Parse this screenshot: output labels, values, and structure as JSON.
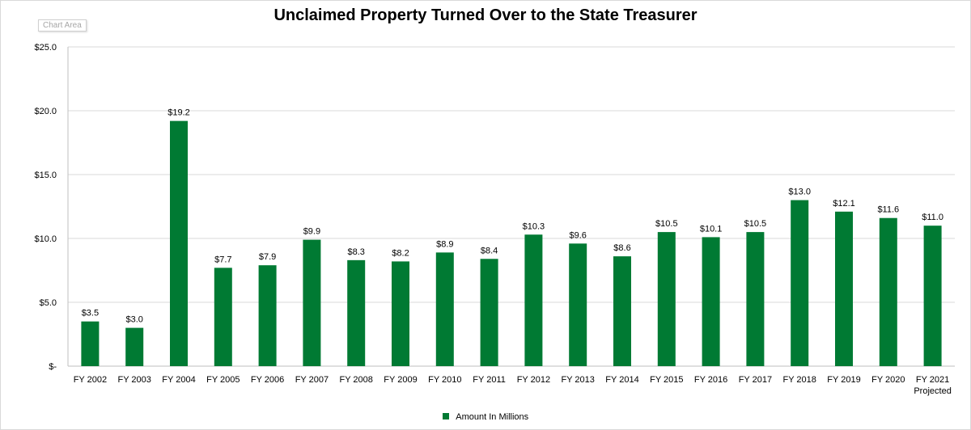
{
  "chart_data": {
    "type": "bar",
    "title": "Unclaimed Property Turned Over to the State Treasurer",
    "categories": [
      "FY 2002",
      "FY 2003",
      "FY 2004",
      "FY 2005",
      "FY 2006",
      "FY 2007",
      "FY 2008",
      "FY 2009",
      "FY 2010",
      "FY 2011",
      "FY 2012",
      "FY 2013",
      "FY 2014",
      "FY 2015",
      "FY 2016",
      "FY 2017",
      "FY 2018",
      "FY 2019",
      "FY 2020",
      "FY 2021\nProjected"
    ],
    "series": [
      {
        "name": "Amount  In Millions",
        "values": [
          3.5,
          3.0,
          19.2,
          7.7,
          7.9,
          9.9,
          8.3,
          8.2,
          8.9,
          8.4,
          10.3,
          9.6,
          8.6,
          10.5,
          10.1,
          10.5,
          13.0,
          12.1,
          11.6,
          11.0
        ],
        "data_labels": [
          "$3.5",
          "$3.0",
          "$19.2",
          "$7.7",
          "$7.9",
          "$9.9",
          "$8.3",
          "$8.2",
          "$8.9",
          "$8.4",
          "$10.3",
          "$9.6",
          "$8.6",
          "$10.5",
          "$10.1",
          "$10.5",
          "$13.0",
          "$12.1",
          "$11.6",
          "$11.0"
        ],
        "color": "#007a33"
      }
    ],
    "yticks": [
      0,
      5,
      10,
      15,
      20,
      25
    ],
    "ytick_labels": [
      "$-",
      "$5.0",
      "$10.0",
      "$15.0",
      "$20.0",
      "$25.0"
    ],
    "ylim": [
      0,
      25
    ],
    "xlabel": "",
    "ylabel": "",
    "grid": true,
    "legend_position": "bottom"
  },
  "ui": {
    "chart_area_label": "Chart Area"
  }
}
